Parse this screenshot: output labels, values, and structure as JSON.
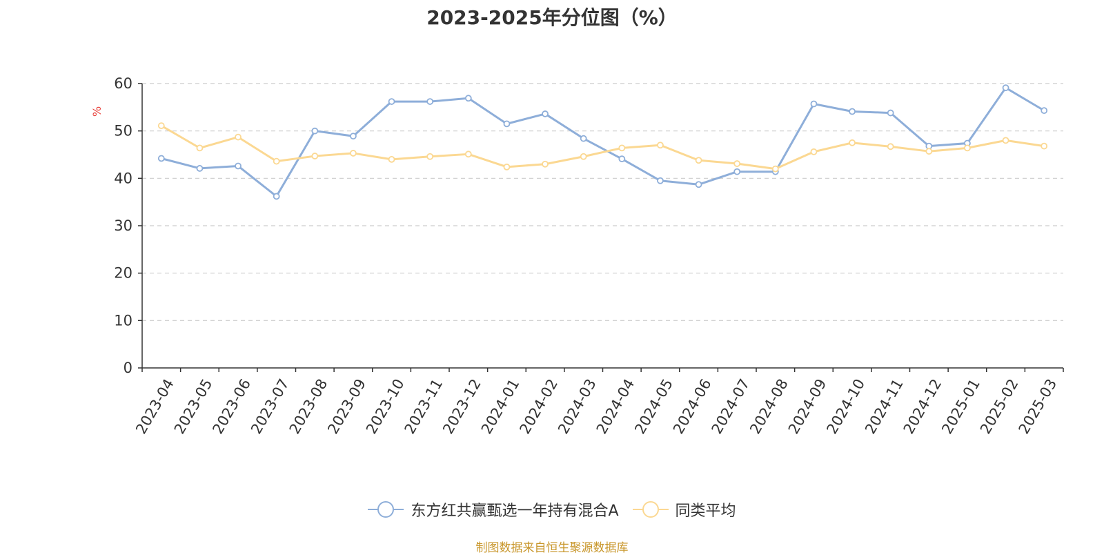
{
  "chart_data": {
    "type": "line",
    "title": "2023-2025年分位图（%）",
    "ylabel": "%",
    "xlabel": "",
    "ylim": [
      0,
      60
    ],
    "yticks": [
      0,
      10,
      20,
      30,
      40,
      50,
      60
    ],
    "grid": true,
    "legend_position": "bottom-center",
    "categories": [
      "2023-04",
      "2023-05",
      "2023-06",
      "2023-07",
      "2023-08",
      "2023-09",
      "2023-10",
      "2023-11",
      "2023-12",
      "2024-01",
      "2024-02",
      "2024-03",
      "2024-04",
      "2024-05",
      "2024-06",
      "2024-07",
      "2024-08",
      "2024-09",
      "2024-10",
      "2024-11",
      "2024-12",
      "2025-01",
      "2025-02",
      "2025-03"
    ],
    "series": [
      {
        "name": "东方红共赢甄选一年持有混合A",
        "color": "#8eaed9",
        "values": [
          44.2,
          42.1,
          42.6,
          36.2,
          50.0,
          48.9,
          56.2,
          56.2,
          56.9,
          51.5,
          53.6,
          48.4,
          44.1,
          39.5,
          38.7,
          41.4,
          41.4,
          55.7,
          54.1,
          53.8,
          46.8,
          47.4,
          59.1,
          54.3
        ]
      },
      {
        "name": "同类平均",
        "color": "#fbd892",
        "values": [
          51.1,
          46.4,
          48.7,
          43.6,
          44.7,
          45.3,
          44.0,
          44.6,
          45.1,
          42.4,
          43.0,
          44.6,
          46.4,
          47.0,
          43.8,
          43.1,
          42.0,
          45.6,
          47.5,
          46.7,
          45.7,
          46.4,
          48.0,
          46.8
        ]
      }
    ]
  },
  "source_text": "制图数据来自恒生聚源数据库"
}
